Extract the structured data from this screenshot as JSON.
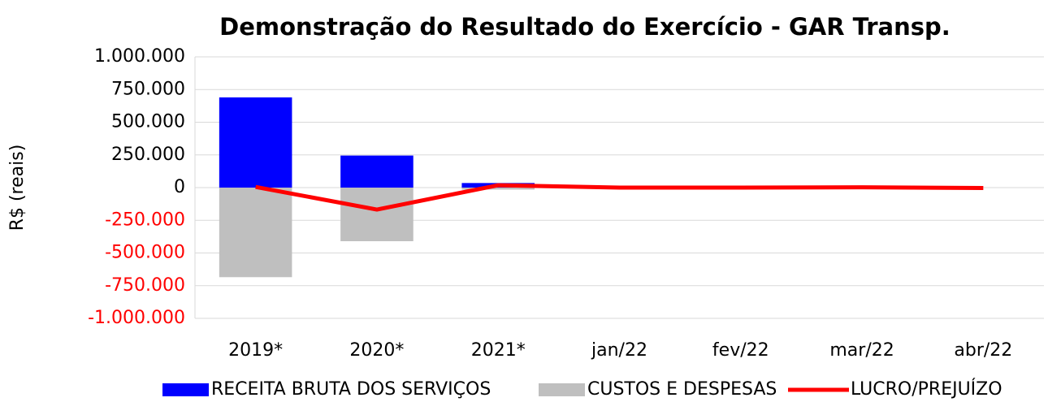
{
  "chart_data": {
    "type": "bar",
    "title": "Demonstração do Resultado do Exercício - GAR Transp.",
    "ylabel": "R$ (reais)",
    "categories": [
      "2019*",
      "2020*",
      "2021*",
      "jan/22",
      "fev/22",
      "mar/22",
      "abr/22"
    ],
    "series": [
      {
        "name": "RECEITA BRUTA DOS SERVIÇOS",
        "type": "bar",
        "color": "#0000ff",
        "values": [
          690000,
          245000,
          35000,
          0,
          0,
          0,
          0
        ]
      },
      {
        "name": "CUSTOS E DESPESAS",
        "type": "bar",
        "color": "#bfbfbf",
        "values": [
          -685000,
          -410000,
          -15000,
          0,
          0,
          0,
          0
        ]
      },
      {
        "name": "LUCRO/PREJUÍZO",
        "type": "line",
        "color": "#ff0000",
        "values": [
          5000,
          -168000,
          18000,
          0,
          0,
          2000,
          -3000
        ]
      }
    ],
    "ylim": [
      -1000000,
      1000000
    ],
    "yticks": [
      {
        "value": 1000000,
        "label": "1.000.000"
      },
      {
        "value": 750000,
        "label": "750.000"
      },
      {
        "value": 500000,
        "label": "500.000"
      },
      {
        "value": 250000,
        "label": "250.000"
      },
      0,
      {
        "value": -250000,
        "label": "-250.000"
      },
      {
        "value": -500000,
        "label": "-500.000"
      },
      {
        "value": -750000,
        "label": "-750.000"
      },
      {
        "value": -1000000,
        "label": "-1.000.000"
      }
    ],
    "negative_tick_color": "#ff0000",
    "grid": true,
    "legend": "bottom"
  }
}
